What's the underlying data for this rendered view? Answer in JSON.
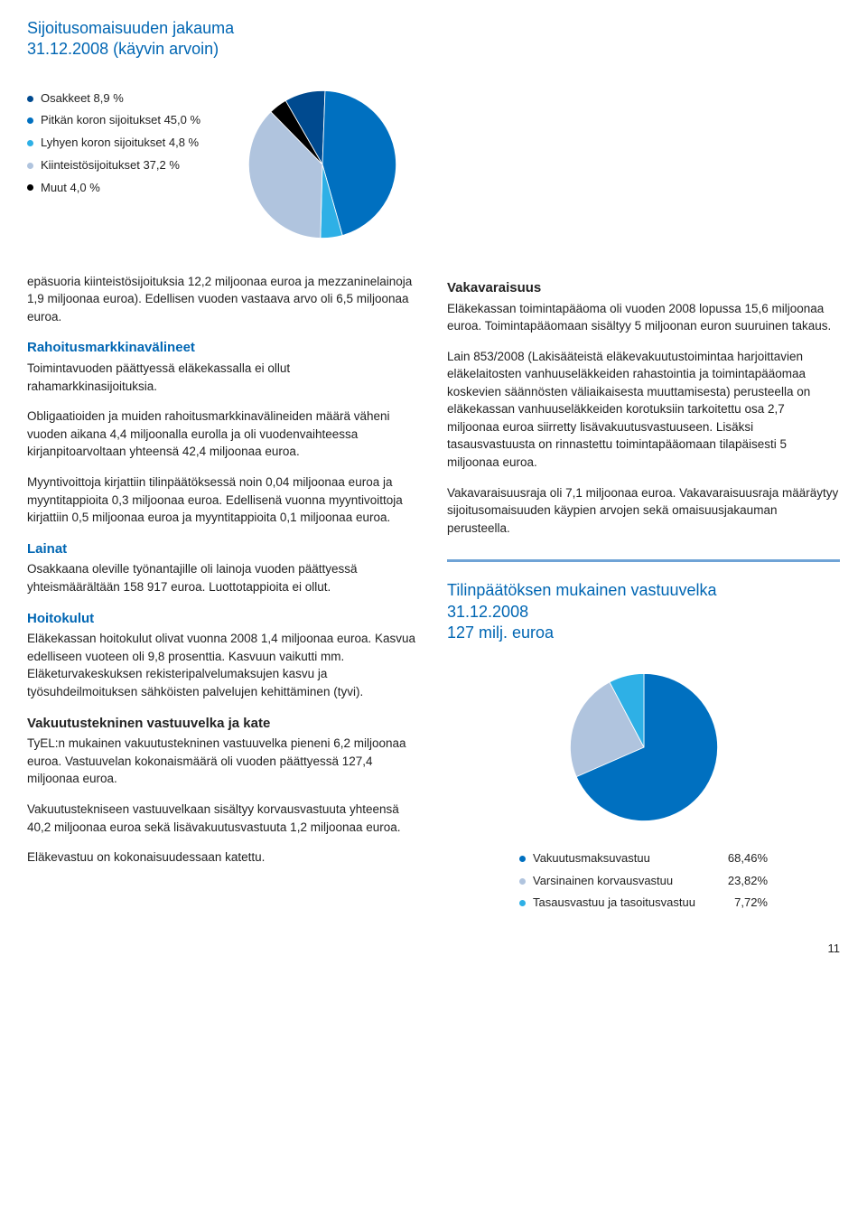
{
  "chart1": {
    "title_line1": "Sijoitusomaisuuden jakauma",
    "title_line2": "31.12.2008 (käyvin arvoin)",
    "type": "pie",
    "legend": [
      {
        "label": "Osakkeet 8,9 %",
        "color": "#004a8f",
        "value": 8.9
      },
      {
        "label": "Pitkän koron sijoitukset 45,0 %",
        "color": "#0070c0",
        "value": 45.0
      },
      {
        "label": "Lyhyen koron sijoitukset 4,8 %",
        "color": "#2eb0e6",
        "value": 4.8
      },
      {
        "label": "Kiinteistösijoitukset 37,2 %",
        "color": "#b0c4de",
        "value": 37.2
      },
      {
        "label": "Muut 4,0 %",
        "color": "#000000",
        "value": 4.0
      }
    ],
    "background_color": "#ffffff"
  },
  "left_intro": "epäsuoria kiinteistösijoituksia 12,2 miljoonaa euroa ja mezzaninelainoja 1,9 miljoonaa euroa). Edellisen vuoden vastaava arvo oli 6,5 miljoonaa euroa.",
  "sections": {
    "rahoitus": {
      "heading": "Rahoitusmarkkinavälineet",
      "p1": "Toimintavuoden päättyessä eläkekassalla ei ollut rahamarkkinasijoituksia.",
      "p2": "Obligaatioiden ja muiden rahoitusmarkkinavälineiden määrä väheni vuoden aikana 4,4 miljoonalla eurolla ja oli vuodenvaihteessa kirjanpitoarvoltaan yhteensä 42,4 miljoonaa euroa.",
      "p3": "Myyntivoittoja kirjattiin tilinpäätöksessä noin 0,04 miljoonaa euroa ja myyntitappioita 0,3 miljoonaa euroa. Edellisenä vuonna myyntivoittoja kirjattiin 0,5 miljoonaa euroa ja myyntitappioita 0,1 miljoonaa euroa."
    },
    "lainat": {
      "heading": "Lainat",
      "p1": "Osakkaana oleville työnantajille oli lainoja vuoden päättyessä yhteismäärältään 158 917 euroa. Luottotappioita ei ollut."
    },
    "hoitokulut": {
      "heading": "Hoitokulut",
      "p1": "Eläkekassan hoitokulut olivat vuonna 2008 1,4 miljoonaa euroa. Kasvua edelliseen vuoteen oli 9,8 prosenttia. Kasvuun vaikutti mm. Eläketurvakeskuksen rekisteripalvelumaksujen kasvu ja työsuhdeilmoituksen sähköisten palvelujen kehittäminen (tyvi)."
    },
    "vakuutustek": {
      "heading": "Vakuutustekninen vastuuvelka ja kate",
      "p1": "TyEL:n mukainen vakuutustekninen vastuuvelka pieneni 6,2 miljoonaa euroa. Vastuuvelan kokonaismäärä oli vuoden päättyessä 127,4 miljoonaa euroa.",
      "p2": "Vakuutustekniseen vastuuvelkaan sisältyy korvausvastuuta yhteensä 40,2 miljoonaa euroa sekä lisävakuutusvastuuta 1,2 miljoonaa euroa.",
      "p3": "Eläkevastuu on kokonaisuudessaan katettu."
    },
    "vakavaraisuus": {
      "heading": "Vakavaraisuus",
      "p1": "Eläkekassan toimintapääoma oli vuoden 2008 lopussa 15,6 miljoonaa euroa. Toimintapääomaan sisältyy 5 miljoonan euron suuruinen takaus.",
      "p2": "Lain 853/2008 (Lakisääteistä eläkevakuutustoimintaa harjoittavien eläkelaitosten vanhuuseläkkeiden rahastointia ja toimintapääomaa koskevien säännösten väliaikaisesta muuttamisesta) perusteella on eläkekassan vanhuuseläkkeiden korotuksiin tarkoitettu osa 2,7 miljoonaa euroa siirretty lisävakuutusvastuuseen. Lisäksi tasausvastuusta on rinnastettu toimintapääomaan tilapäisesti 5 miljoonaa euroa.",
      "p3": "Vakavaraisuusraja oli 7,1 miljoonaa euroa. Vakavaraisuusraja määräytyy sijoitusomaisuuden käypien arvojen sekä omaisuusjakauman perusteella."
    }
  },
  "chart2": {
    "title_line1": "Tilinpäätöksen mukainen vastuuvelka",
    "title_line2": "31.12.2008",
    "title_line3": "127 milj. euroa",
    "type": "pie",
    "legend": [
      {
        "label": "Vakuutusmaksuvastuu",
        "value_text": "68,46%",
        "color": "#0070c0",
        "value": 68.46
      },
      {
        "label": "Varsinainen korvausvastuu",
        "value_text": "23,82%",
        "color": "#b0c4de",
        "value": 23.82
      },
      {
        "label": "Tasausvastuu ja tasoitusvastuu",
        "value_text": "7,72%",
        "color": "#2eb0e6",
        "value": 7.72
      }
    ],
    "background_color": "#ffffff"
  },
  "page_number": "11"
}
